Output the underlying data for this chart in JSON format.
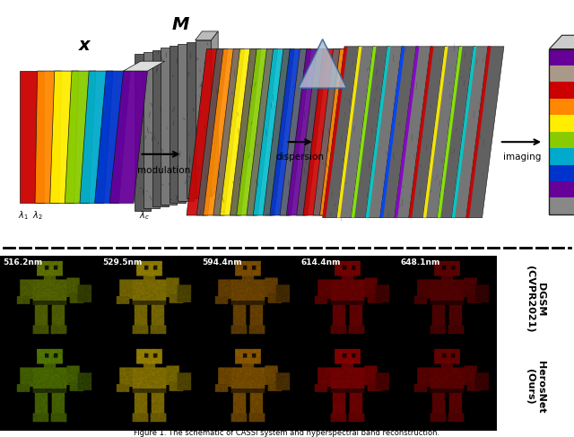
{
  "title": "Figure 1. The schematic of CASSI system and hyperspectral band reconstruction.",
  "wavelengths": [
    "516.2nm",
    "529.5nm",
    "594.4nm",
    "614.4nm",
    "648.1nm"
  ],
  "row_labels": [
    "DGSM\n(CVPR2021)",
    "HerosNet\n(Ours)"
  ],
  "x_colors": [
    "#cc0000",
    "#ff8800",
    "#ffee00",
    "#88cc00",
    "#00aacc",
    "#0033cc",
    "#660099"
  ],
  "mod_colors": [
    "#cc0000",
    "#ff8800",
    "#ffee00",
    "#88cc00",
    "#00bbcc",
    "#0033cc",
    "#660099",
    "#cc0000",
    "#ff8800",
    "#ffee00"
  ],
  "disp_strip_colors": [
    "#cc0000",
    "#ffee00",
    "#88ee00",
    "#00cccc",
    "#0044ff",
    "#8800cc",
    "#cc0000",
    "#ffee00",
    "#88ee00",
    "#00cccc"
  ],
  "y_stripe_colors": [
    "#888888",
    "#660099",
    "#0033cc",
    "#00aacc",
    "#88cc00",
    "#ffee00",
    "#ff8800",
    "#cc0000",
    "#aa9988",
    "#660099"
  ],
  "tint_row0": [
    "#7a9200",
    "#b8a000",
    "#a06400",
    "#960000",
    "#780000"
  ],
  "tint_row1": [
    "#6a9800",
    "#c0a400",
    "#b07000",
    "#aa0000",
    "#880000"
  ],
  "background": "#ffffff",
  "arrow_color": "#000000"
}
